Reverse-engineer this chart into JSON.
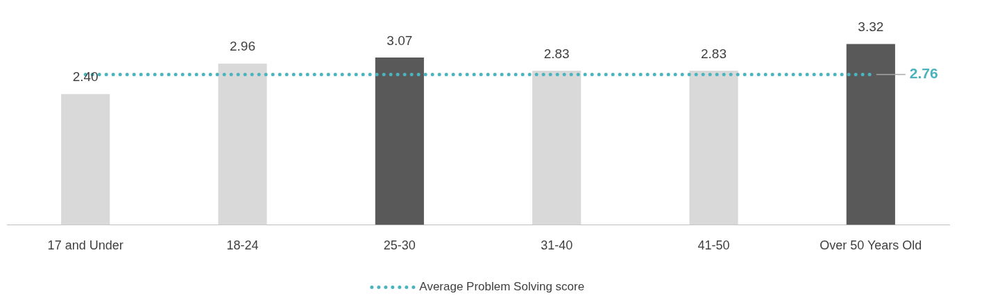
{
  "chart_data": {
    "type": "bar",
    "categories": [
      "17 and Under",
      "18-24",
      "25-30",
      "31-40",
      "41-50",
      "Over 50 Years Old"
    ],
    "series": [
      {
        "colors": [
          "#d9d9d9",
          "#d9d9d9",
          "#595959",
          "#d9d9d9",
          "#d9d9d9",
          "#595959"
        ],
        "values": [
          2.4,
          2.96,
          3.07,
          2.83,
          2.83,
          3.32
        ],
        "value_labels": [
          "2.40",
          "2.96",
          "3.07",
          "2.83",
          "2.83",
          "3.32"
        ]
      },
      {
        "type": "line",
        "name": "Average Problem Solving score",
        "color": "#4bb3bd",
        "values": [
          2.76,
          2.76,
          2.76,
          2.76,
          2.76,
          2.76
        ],
        "line_style": "dotted",
        "marker": "none"
      }
    ],
    "annotations": [
      {
        "text": "2.76",
        "x": "Over 50 Years Old",
        "y": 2.76
      }
    ],
    "tick_labels": "x",
    "grid": false,
    "legend": "bottom"
  }
}
